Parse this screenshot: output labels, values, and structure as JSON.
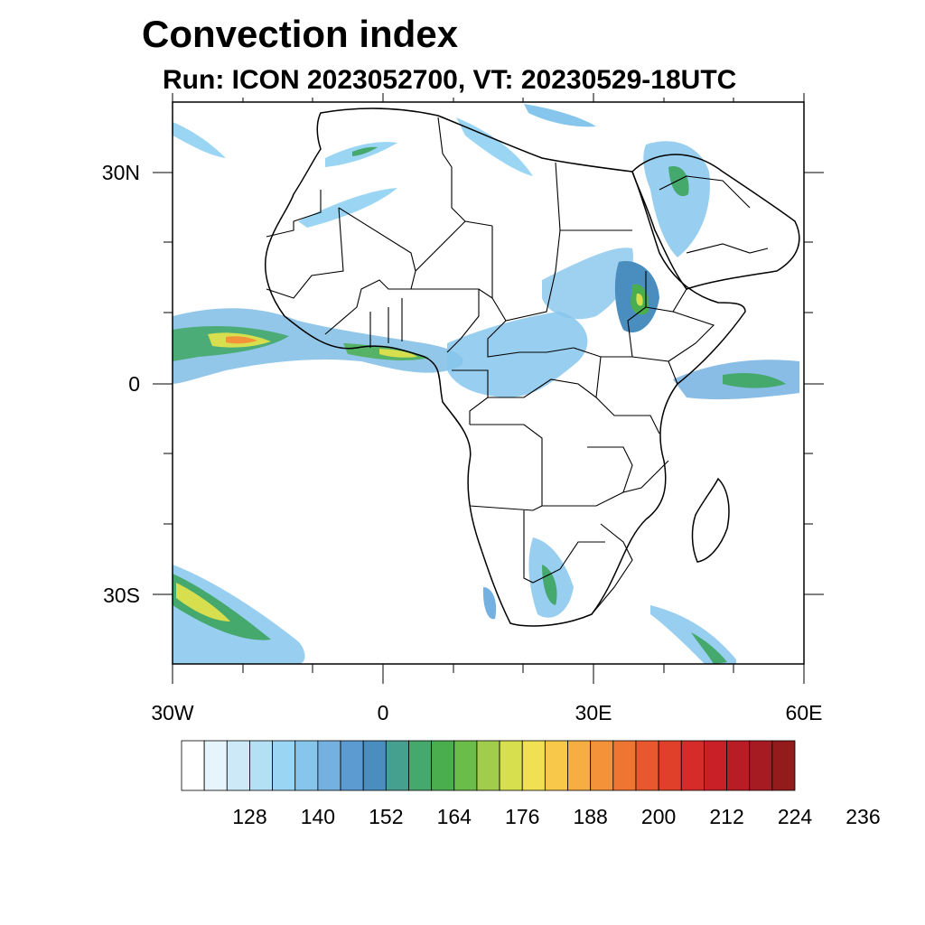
{
  "title": "Convection index",
  "subtitle": "Run: ICON 2023052700,  VT: 20230529-18UTC",
  "map": {
    "region": "Africa",
    "lat_labels": [
      "30N",
      "0",
      "30S"
    ],
    "lon_labels": [
      "30W",
      "0",
      "30E",
      "60E"
    ],
    "boundary_color": "#000000"
  },
  "colorbar": {
    "colors": [
      "#ffffff",
      "#e6f4fc",
      "#cde9f7",
      "#b4e0f5",
      "#9ad6f3",
      "#86c6ec",
      "#74b1e0",
      "#5b9bd1",
      "#4a8ec0",
      "#45a08f",
      "#45a86c",
      "#4aae4f",
      "#6bbd4a",
      "#a2cc4b",
      "#d7df4e",
      "#f1e152",
      "#f7c84a",
      "#f6ad41",
      "#f4923a",
      "#ef7533",
      "#e8572d",
      "#e03f2a",
      "#d72b29",
      "#c92028",
      "#b81c25",
      "#a61a22",
      "#931b1c"
    ],
    "labels": [
      "128",
      "140",
      "152",
      "164",
      "176",
      "188",
      "200",
      "212",
      "224",
      "236"
    ]
  }
}
